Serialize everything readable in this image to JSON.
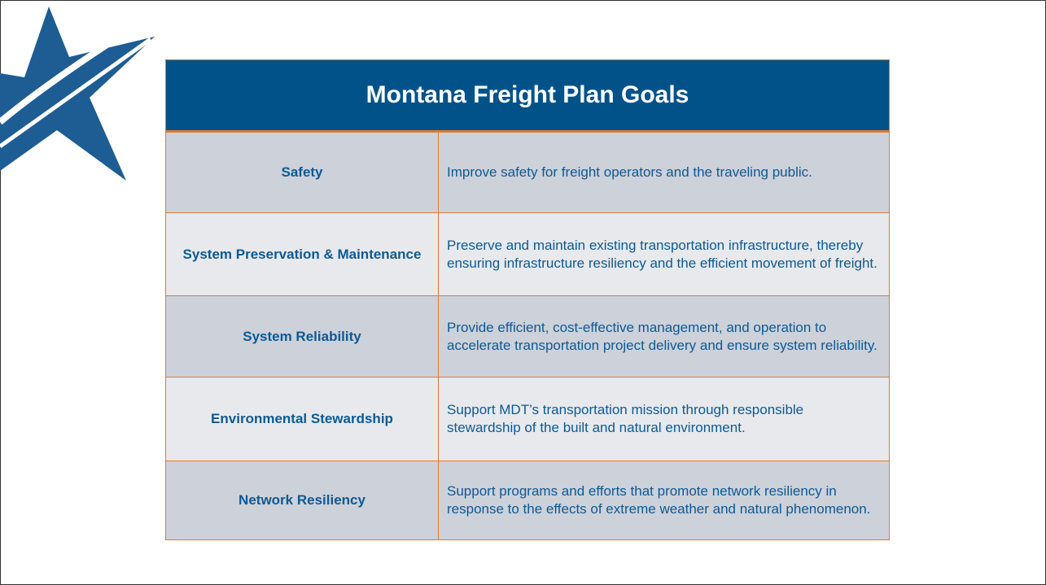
{
  "table": {
    "title": "Montana Freight Plan Goals",
    "rows": [
      [
        "Safety",
        "Improve safety for freight operators and the traveling public."
      ],
      [
        "System Preservation & Maintenance",
        "Preserve and maintain existing transportation infrastructure, thereby ensuring infrastructure resiliency and the efficient movement of freight."
      ],
      [
        "System Reliability",
        "Provide efficient, cost-effective management, and operation to accelerate transportation project delivery and ensure system reliability."
      ],
      [
        "Environmental Stewardship",
        "Support MDT’s transportation mission through responsible stewardship of the built and natural environment."
      ],
      [
        "Network Resiliency",
        "Support programs and efforts that promote network resiliency in response to the effects of extreme weather and natural phenomenon."
      ]
    ]
  }
}
